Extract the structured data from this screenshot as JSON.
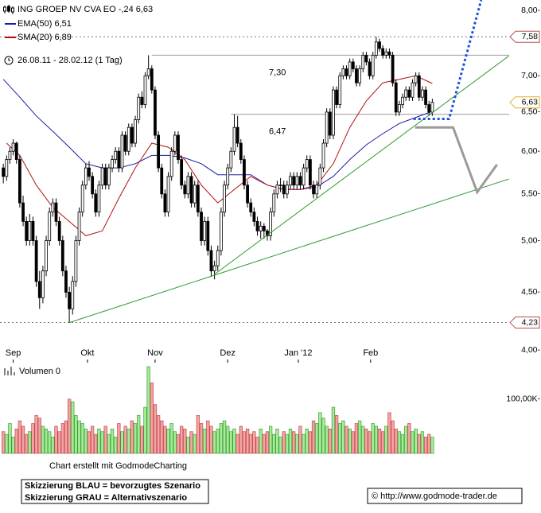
{
  "chart_data": {
    "type": "candlestick",
    "title": "ING GROEP NV   CVA EO -,24 6,63",
    "subtitle": "26.08.11 - 28.02.12 (1 Tag)",
    "up_color": "#ffffff",
    "down_color": "#000000",
    "ohlc": [
      [
        5.8,
        5.85,
        5.62,
        5.7
      ],
      [
        5.7,
        5.95,
        5.65,
        5.9
      ],
      [
        5.9,
        6.05,
        5.85,
        6.0
      ],
      [
        6.0,
        6.15,
        5.95,
        6.1
      ],
      [
        6.1,
        6.12,
        5.85,
        5.9
      ],
      [
        5.9,
        5.95,
        5.35,
        5.4
      ],
      [
        5.4,
        5.48,
        5.15,
        5.2
      ],
      [
        5.2,
        5.25,
        4.95,
        5.0
      ],
      [
        5.0,
        5.28,
        4.95,
        5.2
      ],
      [
        5.2,
        5.25,
        4.95,
        5.0
      ],
      [
        5.0,
        5.05,
        4.55,
        4.6
      ],
      [
        4.6,
        4.7,
        4.35,
        4.45
      ],
      [
        4.45,
        4.75,
        4.4,
        4.7
      ],
      [
        4.7,
        5.05,
        4.65,
        5.0
      ],
      [
        5.0,
        5.35,
        4.95,
        5.3
      ],
      [
        5.3,
        5.45,
        5.25,
        5.4
      ],
      [
        5.4,
        5.45,
        5.15,
        5.2
      ],
      [
        5.2,
        5.25,
        4.95,
        5.0
      ],
      [
        5.0,
        5.05,
        4.65,
        4.7
      ],
      [
        4.7,
        4.75,
        4.45,
        4.5
      ],
      [
        4.5,
        4.55,
        4.23,
        4.35
      ],
      [
        4.35,
        4.65,
        4.3,
        4.6
      ],
      [
        4.6,
        5.05,
        4.55,
        5.0
      ],
      [
        5.0,
        5.35,
        4.95,
        5.3
      ],
      [
        5.3,
        5.65,
        5.25,
        5.6
      ],
      [
        5.6,
        5.85,
        5.55,
        5.8
      ],
      [
        5.8,
        5.88,
        5.65,
        5.7
      ],
      [
        5.7,
        5.75,
        5.45,
        5.5
      ],
      [
        5.5,
        5.55,
        5.25,
        5.3
      ],
      [
        5.3,
        5.65,
        5.25,
        5.6
      ],
      [
        5.6,
        5.85,
        5.55,
        5.8
      ],
      [
        5.8,
        5.85,
        5.55,
        5.6
      ],
      [
        5.6,
        5.85,
        5.55,
        5.8
      ],
      [
        5.8,
        5.95,
        5.75,
        5.9
      ],
      [
        5.9,
        6.05,
        5.85,
        6.0
      ],
      [
        6.0,
        6.05,
        5.75,
        5.8
      ],
      [
        5.8,
        6.25,
        5.75,
        6.2
      ],
      [
        6.2,
        6.25,
        5.95,
        6.0
      ],
      [
        6.0,
        6.35,
        5.95,
        6.3
      ],
      [
        6.3,
        6.35,
        6.05,
        6.1
      ],
      [
        6.1,
        6.45,
        6.05,
        6.4
      ],
      [
        6.4,
        6.75,
        6.35,
        6.7
      ],
      [
        6.7,
        6.78,
        6.55,
        6.6
      ],
      [
        6.6,
        7.05,
        6.55,
        7.0
      ],
      [
        7.0,
        7.3,
        6.95,
        7.1
      ],
      [
        7.1,
        7.15,
        6.75,
        6.8
      ],
      [
        6.8,
        6.85,
        6.15,
        6.2
      ],
      [
        6.2,
        6.25,
        5.75,
        5.8
      ],
      [
        5.8,
        5.85,
        5.45,
        5.5
      ],
      [
        5.5,
        5.55,
        5.25,
        5.3
      ],
      [
        5.3,
        5.75,
        5.25,
        5.7
      ],
      [
        5.7,
        6.05,
        5.65,
        6.0
      ],
      [
        6.0,
        6.25,
        5.95,
        6.2
      ],
      [
        6.2,
        6.25,
        5.85,
        5.9
      ],
      [
        5.9,
        5.95,
        5.55,
        5.6
      ],
      [
        5.6,
        5.65,
        5.45,
        5.5
      ],
      [
        5.5,
        5.75,
        5.45,
        5.7
      ],
      [
        5.7,
        5.75,
        5.35,
        5.4
      ],
      [
        5.4,
        5.65,
        5.35,
        5.6
      ],
      [
        5.6,
        5.65,
        5.25,
        5.3
      ],
      [
        5.3,
        5.35,
        4.95,
        5.0
      ],
      [
        5.0,
        5.25,
        4.95,
        5.2
      ],
      [
        5.2,
        5.25,
        4.85,
        4.9
      ],
      [
        4.9,
        4.95,
        4.65,
        4.7
      ],
      [
        4.7,
        4.8,
        4.62,
        4.75
      ],
      [
        4.75,
        4.95,
        4.7,
        4.9
      ],
      [
        4.9,
        5.35,
        4.85,
        5.3
      ],
      [
        5.3,
        5.65,
        5.25,
        5.6
      ],
      [
        5.6,
        5.85,
        5.55,
        5.8
      ],
      [
        5.8,
        6.05,
        5.75,
        6.0
      ],
      [
        6.0,
        6.47,
        5.95,
        6.3
      ],
      [
        6.3,
        6.45,
        6.05,
        6.1
      ],
      [
        6.1,
        6.15,
        5.85,
        5.9
      ],
      [
        5.9,
        5.95,
        5.55,
        5.6
      ],
      [
        5.6,
        5.65,
        5.35,
        5.4
      ],
      [
        5.4,
        5.45,
        5.25,
        5.3
      ],
      [
        5.3,
        5.35,
        5.15,
        5.2
      ],
      [
        5.2,
        5.25,
        5.05,
        5.1
      ],
      [
        5.1,
        5.2,
        5.02,
        5.15
      ],
      [
        5.15,
        5.18,
        5.02,
        5.1
      ],
      [
        5.1,
        5.12,
        5.0,
        5.05
      ],
      [
        5.05,
        5.35,
        5.0,
        5.3
      ],
      [
        5.3,
        5.55,
        5.25,
        5.5
      ],
      [
        5.5,
        5.65,
        5.45,
        5.6
      ],
      [
        5.6,
        5.68,
        5.52,
        5.6
      ],
      [
        5.6,
        5.65,
        5.45,
        5.5
      ],
      [
        5.5,
        5.65,
        5.45,
        5.6
      ],
      [
        5.6,
        5.75,
        5.55,
        5.7
      ],
      [
        5.7,
        5.75,
        5.55,
        5.6
      ],
      [
        5.6,
        5.75,
        5.55,
        5.7
      ],
      [
        5.7,
        5.75,
        5.55,
        5.6
      ],
      [
        5.6,
        5.85,
        5.55,
        5.8
      ],
      [
        5.8,
        5.95,
        5.75,
        5.9
      ],
      [
        5.9,
        5.95,
        5.55,
        5.6
      ],
      [
        5.6,
        5.65,
        5.45,
        5.5
      ],
      [
        5.5,
        5.65,
        5.45,
        5.6
      ],
      [
        5.6,
        5.85,
        5.55,
        5.8
      ],
      [
        5.8,
        6.15,
        5.75,
        6.1
      ],
      [
        6.1,
        6.55,
        6.05,
        6.5
      ],
      [
        6.5,
        6.55,
        6.15,
        6.2
      ],
      [
        6.2,
        6.85,
        6.15,
        6.8
      ],
      [
        6.8,
        6.85,
        6.55,
        6.6
      ],
      [
        6.6,
        7.05,
        6.55,
        7.0
      ],
      [
        7.0,
        7.15,
        6.95,
        7.1
      ],
      [
        7.1,
        7.15,
        6.95,
        7.0
      ],
      [
        7.0,
        7.25,
        6.95,
        7.2
      ],
      [
        7.2,
        7.25,
        7.05,
        7.1
      ],
      [
        7.1,
        7.15,
        6.85,
        6.9
      ],
      [
        6.9,
        7.15,
        6.85,
        7.1
      ],
      [
        7.1,
        7.35,
        7.05,
        7.3
      ],
      [
        7.3,
        7.35,
        7.15,
        7.2
      ],
      [
        7.2,
        7.25,
        6.95,
        7.0
      ],
      [
        7.0,
        7.35,
        6.95,
        7.3
      ],
      [
        7.3,
        7.58,
        7.25,
        7.5
      ],
      [
        7.5,
        7.55,
        7.35,
        7.4
      ],
      [
        7.4,
        7.45,
        7.25,
        7.3
      ],
      [
        7.3,
        7.4,
        7.25,
        7.35
      ],
      [
        7.35,
        7.4,
        7.25,
        7.3
      ],
      [
        7.3,
        7.35,
        6.85,
        6.9
      ],
      [
        6.9,
        6.95,
        6.45,
        6.5
      ],
      [
        6.5,
        6.65,
        6.45,
        6.6
      ],
      [
        6.6,
        6.75,
        6.55,
        6.7
      ],
      [
        6.7,
        6.85,
        6.65,
        6.8
      ],
      [
        6.8,
        6.85,
        6.65,
        6.7
      ],
      [
        6.7,
        6.95,
        6.65,
        6.9
      ],
      [
        6.9,
        7.05,
        6.85,
        7.0
      ],
      [
        7.0,
        7.05,
        6.65,
        6.7
      ],
      [
        6.7,
        6.85,
        6.65,
        6.8
      ],
      [
        6.8,
        6.85,
        6.55,
        6.6
      ],
      [
        6.6,
        6.65,
        6.45,
        6.5
      ],
      [
        6.5,
        6.68,
        6.45,
        6.63
      ]
    ],
    "xlim": [
      -1,
      154.5
    ],
    "xticks": [
      {
        "value": 3,
        "label": "Sep"
      },
      {
        "value": 25.5,
        "label": "Okt"
      },
      {
        "value": 46,
        "label": "Nov"
      },
      {
        "value": 68,
        "label": "Dez"
      },
      {
        "value": 89.4,
        "label": "Jan '12"
      },
      {
        "value": 111.3,
        "label": "Feb"
      }
    ],
    "ylim": [
      4,
      8
    ],
    "log_scale": true,
    "yticks": [
      {
        "value": 8,
        "label": "8,00-"
      },
      {
        "value": 7,
        "label": "7,00-"
      },
      {
        "value": 6.5,
        "label": "6,50-"
      },
      {
        "value": 6,
        "label": "6,00-"
      },
      {
        "value": 5.5,
        "label": "5,50-"
      },
      {
        "value": 5,
        "label": "5,00-"
      },
      {
        "value": 4.5,
        "label": "4,50-"
      },
      {
        "value": 4,
        "label": "4,00-"
      }
    ],
    "series": [
      {
        "name": "EMA(50) 6,51",
        "color": "#1c1caa",
        "x": [
          0,
          5,
          10,
          15,
          20,
          25,
          30,
          35,
          40,
          45,
          50,
          55,
          60,
          65,
          70,
          75,
          80,
          85,
          90,
          95,
          100,
          105,
          110,
          115,
          120,
          125,
          130
        ],
        "values": [
          6.95,
          6.7,
          6.45,
          6.25,
          6.05,
          5.85,
          5.8,
          5.8,
          5.85,
          5.95,
          5.95,
          5.92,
          5.85,
          5.72,
          5.72,
          5.72,
          5.6,
          5.55,
          5.55,
          5.58,
          5.7,
          5.9,
          6.08,
          6.22,
          6.35,
          6.43,
          6.51
        ]
      },
      {
        "name": "SMA(20) 6,89",
        "color": "#b01010",
        "x": [
          1,
          5,
          10,
          15,
          20,
          25,
          30,
          35,
          40,
          45,
          50,
          55,
          60,
          65,
          70,
          75,
          80,
          85,
          90,
          95,
          100,
          105,
          110,
          115,
          120,
          125,
          130
        ],
        "values": [
          6.1,
          5.95,
          5.6,
          5.35,
          5.2,
          5.05,
          5.1,
          5.45,
          5.8,
          6.1,
          6.05,
          5.9,
          5.6,
          5.4,
          5.55,
          5.7,
          5.6,
          5.55,
          5.55,
          5.6,
          5.85,
          6.3,
          6.65,
          6.9,
          6.95,
          7.0,
          6.89
        ]
      }
    ],
    "markers": [
      {
        "value": 7.58,
        "label": "7,58",
        "border": "#b05050",
        "dotted": true
      },
      {
        "value": 6.63,
        "label": "6,63",
        "border": "#e0b020",
        "dotted": false
      },
      {
        "value": 4.23,
        "label": "4,23",
        "border": "#b05050",
        "dotted": true
      }
    ],
    "levels": [
      {
        "value": 7.3,
        "label": "7,30",
        "from": 45
      },
      {
        "value": 6.47,
        "label": "6,47",
        "from": 69
      }
    ],
    "drawings": [
      {
        "color": "#2e9a2e",
        "width": 1,
        "dashed": false,
        "x": [
          64.1,
          153.2
        ],
        "y": [
          4.67,
          7.29
        ]
      },
      {
        "color": "#2e9a2e",
        "width": 1,
        "dashed": false,
        "x": [
          20,
          153.2
        ],
        "y": [
          4.23,
          5.67
        ]
      },
      {
        "color": "#2050e0",
        "width": 3,
        "dashed": true,
        "x": [
          124.3,
          135.1,
          144.8
        ],
        "y": [
          6.41,
          6.41,
          8.17
        ]
      },
      {
        "color": "#9a9a9a",
        "width": 3,
        "dashed": false,
        "x": [
          124.8,
          136.3,
          143.6,
          149.6
        ],
        "y": [
          6.3,
          6.3,
          5.52,
          5.84
        ]
      }
    ],
    "volume": {
      "title": "Volumen 0",
      "up_color": "#a6ec96",
      "up_edge": "#3c9c3c",
      "down_color": "#f4a4a4",
      "down_edge": "#c04848",
      "ylim": [
        0,
        160000
      ],
      "yticks": [
        {
          "value": 100000,
          "label": "100,00K-"
        }
      ],
      "values": [
        40000,
        35000,
        55000,
        30000,
        45000,
        60000,
        50000,
        35000,
        40000,
        55000,
        70000,
        65000,
        50000,
        45000,
        40000,
        30000,
        50000,
        40000,
        55000,
        60000,
        100000,
        95000,
        70000,
        60000,
        55000,
        45000,
        40000,
        50000,
        35000,
        45000,
        40000,
        50000,
        35000,
        45000,
        30000,
        55000,
        40000,
        50000,
        45000,
        60000,
        55000,
        70000,
        50000,
        85000,
        160000,
        130000,
        90000,
        70000,
        60000,
        50000,
        45000,
        55000,
        40000,
        35000,
        50000,
        45000,
        30000,
        40000,
        35000,
        70000,
        55000,
        45000,
        60000,
        50000,
        40000,
        45000,
        55000,
        60000,
        50000,
        40000,
        45000,
        35000,
        50000,
        40000,
        45000,
        35000,
        40000,
        30000,
        45000,
        35000,
        40000,
        50000,
        35000,
        45000,
        30000,
        40000,
        35000,
        45000,
        40000,
        35000,
        50000,
        35000,
        45000,
        40000,
        60000,
        55000,
        75000,
        65000,
        50000,
        45000,
        85000,
        70000,
        55000,
        60000,
        50000,
        45000,
        40000,
        55000,
        60000,
        50000,
        45000,
        40000,
        55000,
        50000,
        45000,
        40000,
        50000,
        75000,
        60000,
        45000,
        40000,
        35000,
        50000,
        55000,
        40000,
        45000,
        35000,
        40000,
        30000,
        35000,
        30000
      ]
    },
    "credit": "Chart erstellt mit GodmodeCharting",
    "notes": [
      "Skizzierung BLAU = bevorzugtes Szenario",
      "Skizzierung GRAU = Alternativszenario"
    ],
    "source": "© http://www.godmode-trader.de"
  }
}
